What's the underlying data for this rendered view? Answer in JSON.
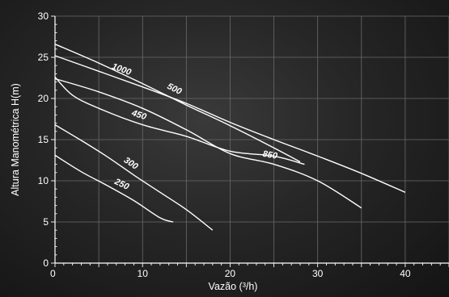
{
  "chart_data": {
    "type": "line",
    "xlabel": "Vazão (³/h)",
    "ylabel": "Altura Manométrica H(m)",
    "xlim": [
      0,
      45
    ],
    "ylim": [
      0,
      30
    ],
    "x_ticks": [
      "0",
      "10",
      "20",
      "30",
      "40"
    ],
    "y_ticks": [
      "0",
      "5",
      "10",
      "15",
      "20",
      "25",
      "30"
    ],
    "grid": true,
    "series": [
      {
        "name": "250",
        "label": "250",
        "x": [
          0,
          3,
          6,
          9,
          12,
          13.5
        ],
        "y": [
          13.1,
          11.1,
          9.4,
          7.6,
          5.5,
          5.0
        ]
      },
      {
        "name": "300",
        "label": "300",
        "x": [
          0,
          3,
          6,
          9,
          12,
          15,
          18
        ],
        "y": [
          16.8,
          14.9,
          12.9,
          10.7,
          8.6,
          6.5,
          4.0
        ]
      },
      {
        "name": "450",
        "label": "450",
        "x": [
          0,
          2,
          5,
          10,
          15,
          20,
          25,
          28.5
        ],
        "y": [
          22.6,
          20.4,
          18.8,
          16.8,
          15.4,
          13.6,
          13.0,
          12.0
        ]
      },
      {
        "name": "850",
        "label": "850",
        "x": [
          0,
          5,
          10,
          15,
          20,
          25,
          30,
          35
        ],
        "y": [
          22.4,
          20.8,
          18.8,
          16.2,
          13.3,
          12.0,
          10.0,
          6.7
        ]
      },
      {
        "name": "1000",
        "label": "1000",
        "x": [
          0,
          5,
          10,
          15,
          20,
          25,
          30,
          35,
          40
        ],
        "y": [
          25.2,
          23.3,
          21.4,
          19.4,
          17.1,
          15.0,
          13.0,
          10.9,
          8.6
        ]
      },
      {
        "name": "500",
        "label": "500",
        "x": [
          0,
          5,
          10,
          15,
          20,
          25,
          28
        ],
        "y": [
          26.6,
          24.3,
          21.8,
          19.2,
          16.7,
          14.0,
          12.3
        ]
      }
    ]
  }
}
